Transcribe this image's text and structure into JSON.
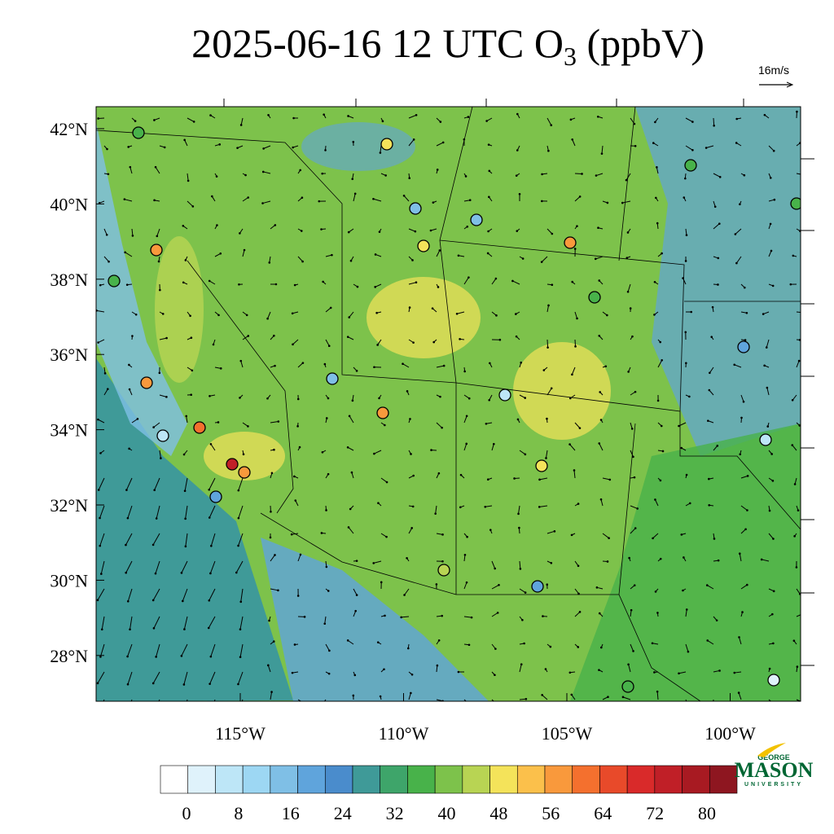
{
  "title": {
    "text": "2025-06-16 12 UTC O",
    "subscript": "3",
    "suffix": " (ppbV)"
  },
  "wind_reference": "16m/s",
  "lat_labels": [
    "42°N",
    "40°N",
    "38°N",
    "36°N",
    "34°N",
    "32°N",
    "30°N",
    "28°N"
  ],
  "lon_labels": [
    "115°W",
    "110°W",
    "105°W",
    "100°W"
  ],
  "colorbar": {
    "colors": [
      "#ffffff",
      "#dff2fb",
      "#bde6f7",
      "#9dd7f3",
      "#7fbfe6",
      "#5fa4dc",
      "#4a8ccc",
      "#3f9a98",
      "#3ea56a",
      "#48b24a",
      "#7dc24b",
      "#b8d453",
      "#f4e35a",
      "#fbc04b",
      "#f9993c",
      "#f4702e",
      "#e84a2a",
      "#d92a2a",
      "#c01f27",
      "#a81a22",
      "#8e1620"
    ],
    "ticks": [
      0,
      8,
      16,
      24,
      32,
      40,
      48,
      56,
      64,
      72,
      80
    ]
  },
  "logo": {
    "line1": "GEORGE",
    "line2": "MASON",
    "line3": "UNIVERSITY"
  }
}
